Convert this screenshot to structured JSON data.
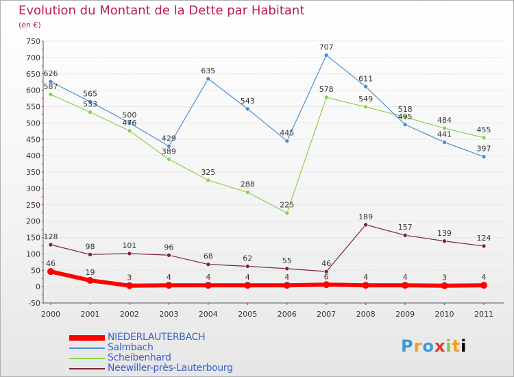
{
  "header": {
    "title": "Evolution du Montant de la Dette par Habitant",
    "subtitle": "(en €)"
  },
  "logo_text": "Proxiti",
  "colors": {
    "title": "#c2185b",
    "axis_text": "#333333",
    "legend_text": "#3a62c9"
  },
  "chart_data": {
    "type": "line",
    "title": "Evolution du Montant de la Dette par Habitant",
    "subtitle": "(en €)",
    "xlabel": "",
    "ylabel": "",
    "x": [
      "2000",
      "2001",
      "2002",
      "2003",
      "2004",
      "2005",
      "2006",
      "2007",
      "2008",
      "2009",
      "2010",
      "2011"
    ],
    "ylim": [
      -50,
      750
    ],
    "yticks": [
      -50,
      0,
      50,
      100,
      150,
      200,
      250,
      300,
      350,
      400,
      450,
      500,
      550,
      600,
      650,
      700,
      750
    ],
    "grid": true,
    "legend_position": "bottom-left",
    "series": [
      {
        "name": "NIEDERLAUTERBACH",
        "color": "#ff0000",
        "values": [
          46,
          19,
          3,
          4,
          4,
          4,
          4,
          6,
          4,
          4,
          3,
          4
        ],
        "labels": [
          "46",
          "19",
          "3",
          "4",
          "4",
          "4",
          "4",
          "6",
          "4",
          "4",
          "3",
          "4"
        ],
        "thick": true
      },
      {
        "name": "Salmbach",
        "color": "#4a8fd0",
        "values": [
          626,
          565,
          500,
          429,
          635,
          543,
          445,
          707,
          611,
          495,
          441,
          397
        ],
        "labels": [
          "626",
          "565",
          "500",
          "429",
          "635",
          "543",
          "445",
          "707",
          "611",
          "495",
          "441",
          "397"
        ],
        "thick": false
      },
      {
        "name": "Scheibenhard",
        "color": "#88d24f",
        "values": [
          587,
          533,
          476,
          389,
          325,
          288,
          225,
          578,
          549,
          518,
          484,
          455
        ],
        "labels": [
          "587",
          "533",
          "476",
          "389",
          "325",
          "288",
          "225",
          "578",
          "549",
          "518",
          "484",
          "455"
        ],
        "thick": false
      },
      {
        "name": "Neewiller-près-Lauterbourg",
        "color": "#7a2630",
        "values": [
          128,
          98,
          101,
          96,
          68,
          62,
          55,
          46,
          189,
          157,
          139,
          124
        ],
        "labels": [
          "128",
          "98",
          "101",
          "96",
          "68",
          "62",
          "55",
          "46",
          "189",
          "157",
          "139",
          "124"
        ],
        "thick": false
      }
    ]
  }
}
